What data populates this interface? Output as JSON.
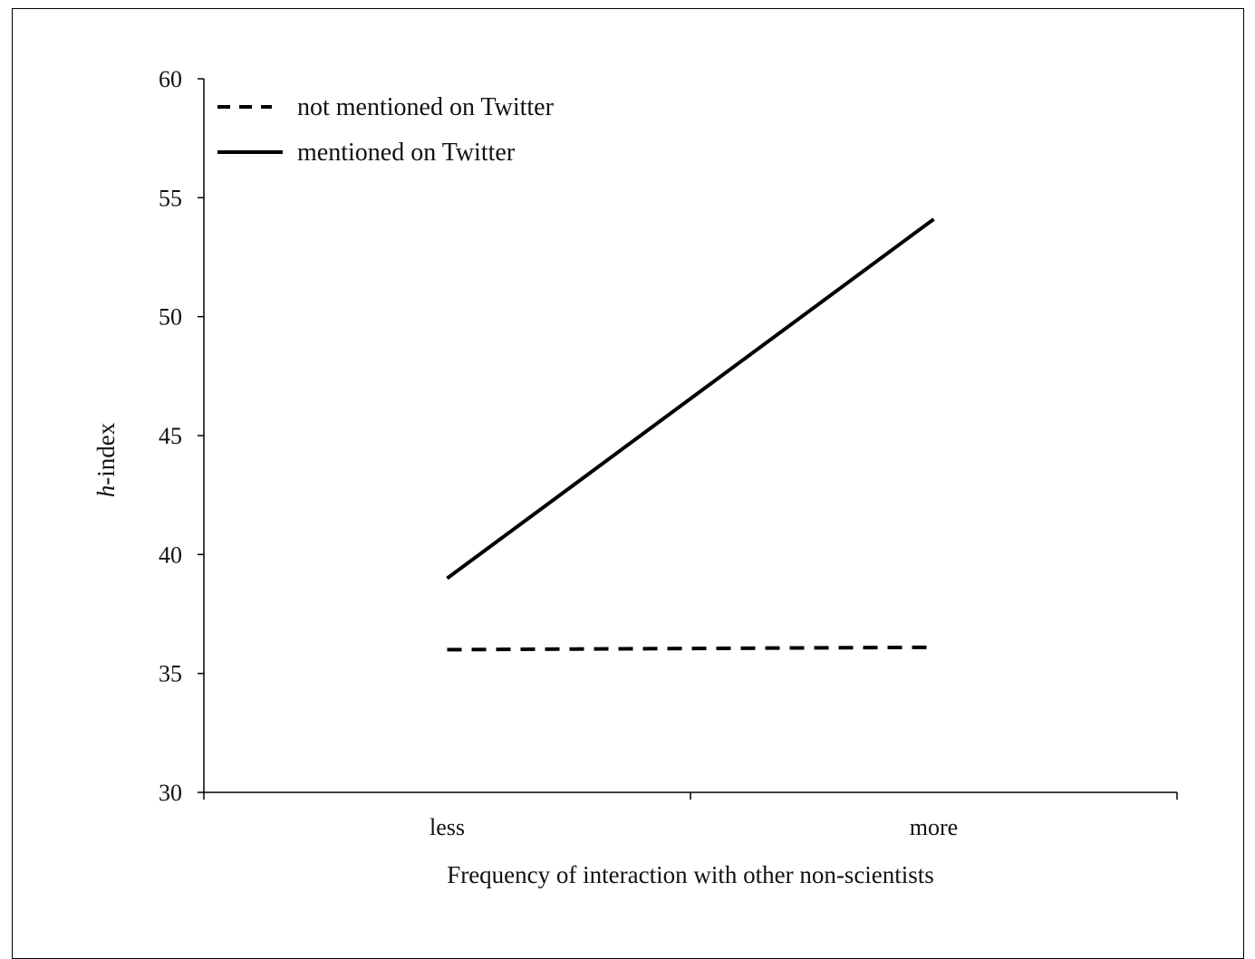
{
  "chart_data": {
    "type": "line",
    "title": "",
    "xlabel": "Frequency of interaction with other non-scientists",
    "ylabel_italic_part": "h",
    "ylabel_rest": "-index",
    "categories": [
      "less",
      "more"
    ],
    "ylim": [
      30,
      60
    ],
    "yticks": [
      30,
      35,
      40,
      45,
      50,
      55,
      60
    ],
    "ytick_labels": [
      "30",
      "35",
      "40",
      "45",
      "50",
      "55",
      "60"
    ],
    "grid": false,
    "legend_position": "top-left",
    "series": [
      {
        "name": "not mentioned on Twitter",
        "style": "dashed",
        "color": "#000000",
        "values": [
          36.0,
          36.1
        ]
      },
      {
        "name": "mentioned on Twitter",
        "style": "solid",
        "color": "#000000",
        "values": [
          39.0,
          54.1
        ]
      }
    ]
  }
}
